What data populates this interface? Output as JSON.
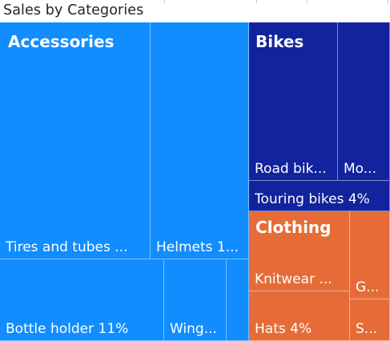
{
  "chart_data": {
    "type": "treemap",
    "title": "Sales by Categories",
    "groups": [
      {
        "name": "Accessories",
        "color": "#118DFF",
        "items": [
          {
            "label": "Tires and tubes ...",
            "category": "Tires and tubes"
          },
          {
            "label": "Helmets 1...",
            "category": "Helmets"
          },
          {
            "label": "Bottle holder 11%",
            "category": "Bottle holder",
            "percent": 11
          },
          {
            "label": "Wing...",
            "category": "Wing..."
          },
          {
            "label": "",
            "category": ""
          }
        ]
      },
      {
        "name": "Bikes",
        "color": "#12239E",
        "items": [
          {
            "label": "Road bik...",
            "category": "Road bikes"
          },
          {
            "label": "Mo...",
            "category": "Mountain bikes"
          },
          {
            "label": "Touring bikes 4%",
            "category": "Touring bikes",
            "percent": 4
          }
        ]
      },
      {
        "name": "Clothing",
        "color": "#E66C37",
        "items": [
          {
            "label": "Knitwear ...",
            "category": "Knitwear"
          },
          {
            "label": "Hats 4%",
            "category": "Hats",
            "percent": 4
          },
          {
            "label": "G...",
            "category": "G..."
          },
          {
            "label": "S...",
            "category": "S..."
          }
        ]
      }
    ]
  }
}
